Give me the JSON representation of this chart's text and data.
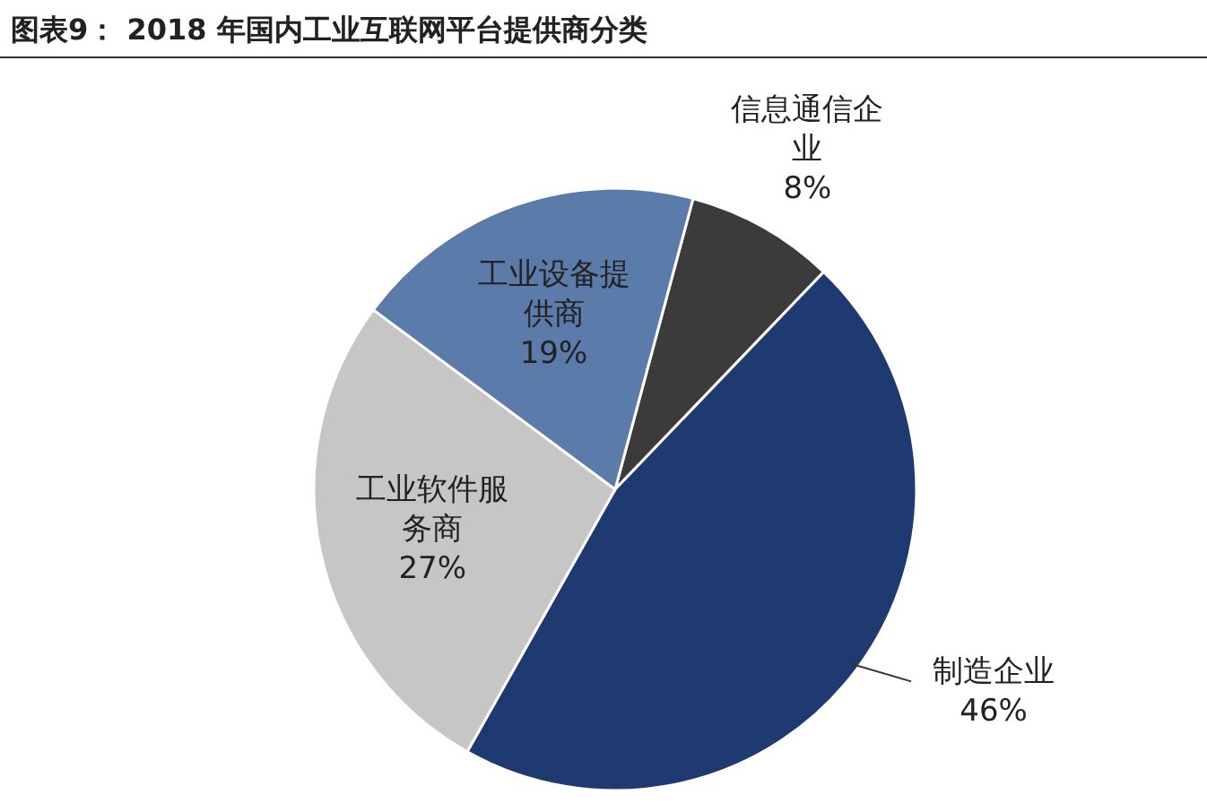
{
  "chart_data": {
    "type": "pie",
    "title": "图表9：  2018 年国内工业互联网平台提供商分类",
    "categories": [
      "信息通信企业",
      "制造企业",
      "工业软件服务商",
      "工业设备提供商"
    ],
    "values": [
      8,
      46,
      27,
      19
    ],
    "colors": [
      "#3b3b3b",
      "#1f3a70",
      "#c6c6c6",
      "#5b7bab"
    ],
    "value_labels": [
      "8%",
      "46%",
      "27%",
      "19%"
    ]
  }
}
